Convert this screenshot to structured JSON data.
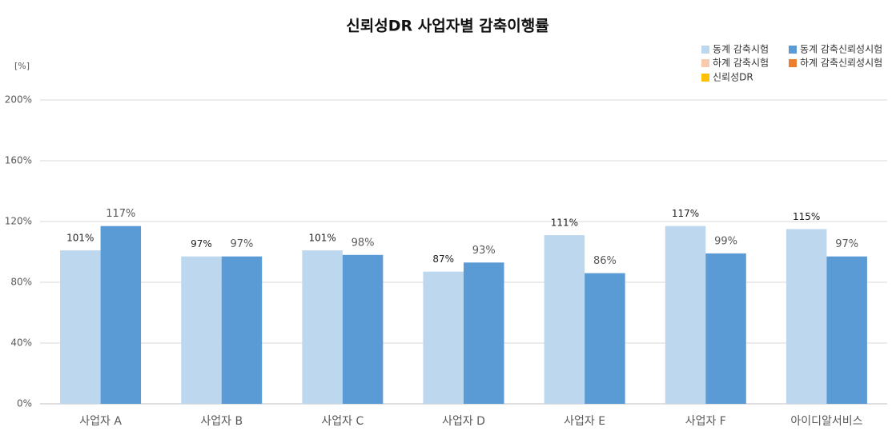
{
  "chart_data": {
    "type": "bar",
    "title": "신뢰성DR 사업자별 감축이행률",
    "y_label": "[%]",
    "categories": [
      "사업자 A",
      "사업자 B",
      "사업자 C",
      "사업자 D",
      "사업자 E",
      "사업자 F",
      "아이디알서비스"
    ],
    "series": [
      {
        "name": "동계 감축시험",
        "color": "#bdd7ee",
        "values": [
          101,
          97,
          101,
          87,
          111,
          117,
          115
        ],
        "value_labels": [
          "101%",
          "97%",
          "101%",
          "87%",
          "111%",
          "117%",
          "115%"
        ]
      },
      {
        "name": "동계 감축신뢰성시험",
        "color": "#5b9bd5",
        "values": [
          117,
          97,
          98,
          93,
          86,
          99,
          97
        ],
        "value_labels": [
          "117%",
          "97%",
          "98%",
          "93%",
          "86%",
          "99%",
          "97%"
        ]
      },
      {
        "name": "하계 감축시험",
        "color": "#f8cbad",
        "values": [
          null,
          null,
          null,
          null,
          null,
          null,
          null
        ]
      },
      {
        "name": "하계 감축신뢰성시험",
        "color": "#ed7d31",
        "values": [
          null,
          null,
          null,
          null,
          null,
          null,
          null
        ]
      },
      {
        "name": "신뢰성DR",
        "color": "#ffc000",
        "values": [
          null,
          null,
          null,
          null,
          null,
          null,
          null
        ]
      }
    ],
    "ylim": [
      0,
      200
    ],
    "yticks": [
      {
        "value": 0,
        "label": "0%"
      },
      {
        "value": 40,
        "label": "40%"
      },
      {
        "value": 80,
        "label": "80%"
      },
      {
        "value": 120,
        "label": "120%"
      },
      {
        "value": 160,
        "label": "160%"
      },
      {
        "value": 200,
        "label": "200%"
      }
    ],
    "grid": true,
    "legend": "top-right"
  }
}
